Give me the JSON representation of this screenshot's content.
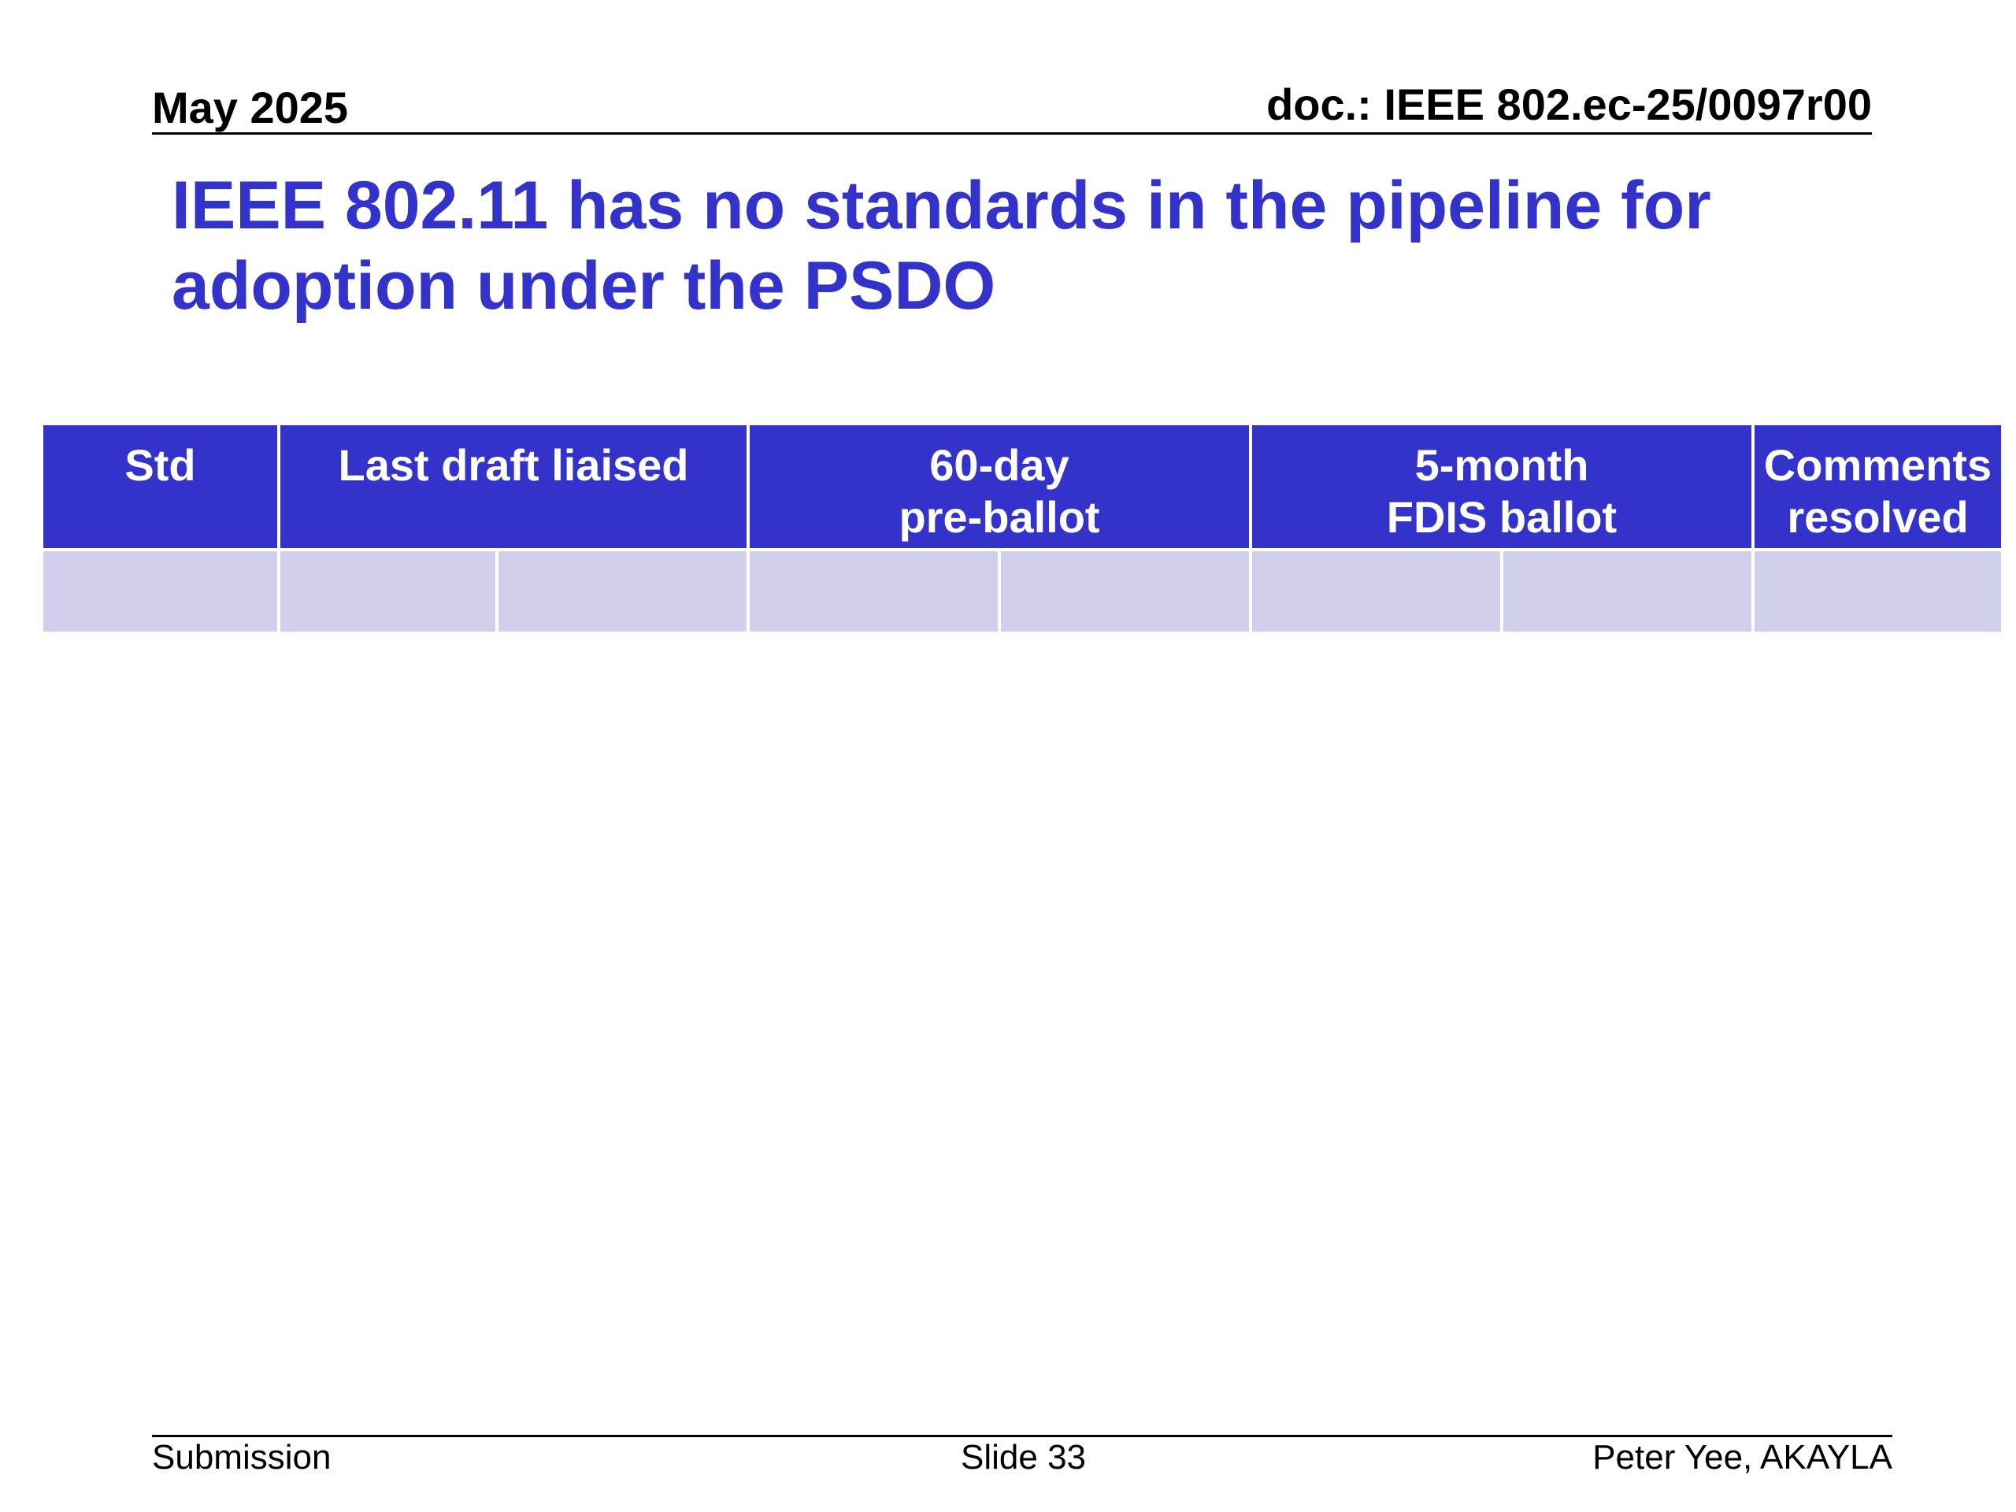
{
  "header": {
    "date": "May 2025",
    "doc_id": "doc.: IEEE 802.ec-25/0097r00"
  },
  "slide": {
    "title": "IEEE 802.11 has no standards in the pipeline for adoption under the PSDO"
  },
  "table": {
    "columns": [
      {
        "line1": "Std",
        "line2": ""
      },
      {
        "line1": "Last draft liaised",
        "line2": ""
      },
      {
        "line1": "60-day",
        "line2": "pre-ballot"
      },
      {
        "line1": "5-month",
        "line2": "FDIS ballot"
      },
      {
        "line1": "Comments",
        "line2": "resolved"
      }
    ],
    "header_color": "#3333cc",
    "row_color": "#d0d0ec"
  },
  "footer": {
    "left": "Submission",
    "center": "Slide 33",
    "right": "Peter Yee, AKAYLA"
  }
}
